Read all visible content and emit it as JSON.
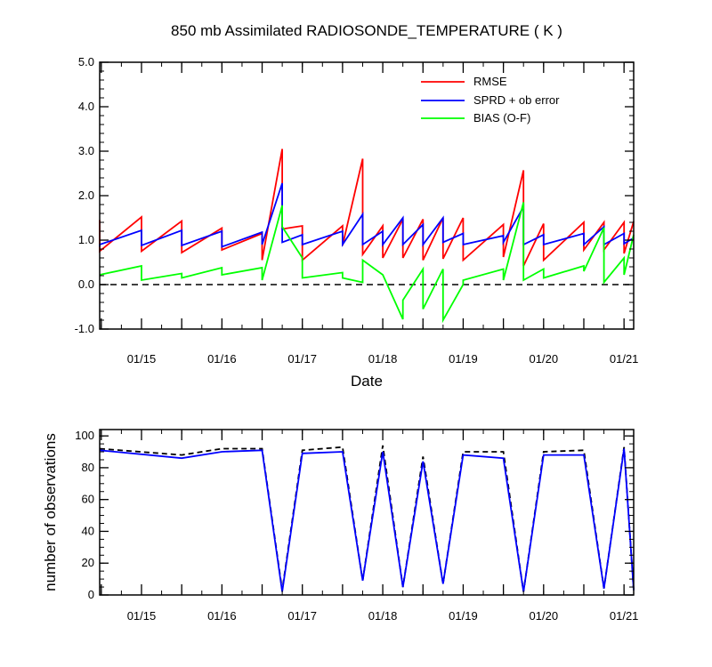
{
  "chart_data": [
    {
      "type": "line",
      "title": "850 mb Assimilated RADIOSONDE_TEMPERATURE ( K )",
      "xlabel": "Date",
      "ylabel": "",
      "xlim": [
        14.48,
        21.12
      ],
      "ylim": [
        -1.0,
        5.0
      ],
      "ytick_labels": [
        "-1.0",
        "0.0",
        "1.0",
        "2.0",
        "3.0",
        "4.0",
        "5.0"
      ],
      "xtick_labels": [
        "01/15",
        "01/16",
        "01/17",
        "01/18",
        "01/19",
        "01/20",
        "01/21"
      ],
      "legend": {
        "position": "top-right",
        "entries": [
          "RMSE",
          "SPRD + ob error",
          "BIAS (O-F)"
        ]
      },
      "zero_line": "dashed",
      "series": [
        {
          "name": "RMSE",
          "color": "#ff0000",
          "x": [
            14.48,
            14.48,
            15.0,
            15.0,
            15.5,
            15.5,
            16.0,
            16.0,
            16.5,
            16.5,
            16.75,
            16.75,
            17.0,
            17.0,
            17.5,
            17.5,
            17.75,
            17.75,
            18.0,
            18.0,
            18.25,
            18.25,
            18.5,
            18.5,
            18.75,
            18.75,
            19.0,
            19.0,
            19.5,
            19.5,
            19.75,
            19.75,
            20.0,
            20.0,
            20.5,
            20.5,
            20.75,
            20.75,
            21.0,
            21.0,
            21.12
          ],
          "y": [
            1.45,
            0.75,
            1.52,
            0.75,
            1.43,
            0.72,
            1.27,
            0.78,
            1.15,
            0.55,
            3.05,
            1.25,
            1.32,
            0.55,
            1.32,
            0.88,
            2.83,
            0.68,
            1.32,
            0.6,
            1.47,
            0.6,
            1.47,
            0.55,
            1.5,
            0.58,
            1.5,
            0.55,
            1.35,
            0.62,
            2.57,
            0.42,
            1.37,
            0.55,
            1.4,
            0.78,
            1.4,
            0.78,
            1.4,
            0.7,
            1.42
          ]
        },
        {
          "name": "SPRD + ob error",
          "color": "#0000ff",
          "x": [
            14.48,
            14.48,
            15.0,
            15.0,
            15.5,
            15.5,
            16.0,
            16.0,
            16.5,
            16.5,
            16.75,
            16.75,
            17.0,
            17.0,
            17.5,
            17.5,
            17.75,
            17.75,
            18.0,
            18.0,
            18.25,
            18.25,
            18.5,
            18.5,
            18.75,
            18.75,
            19.0,
            19.0,
            19.5,
            19.5,
            19.75,
            19.75,
            20.0,
            20.0,
            20.5,
            20.5,
            20.75,
            20.75,
            21.0,
            21.0,
            21.12
          ],
          "y": [
            0.85,
            0.9,
            1.22,
            0.88,
            1.22,
            0.88,
            1.2,
            0.85,
            1.18,
            0.9,
            2.28,
            0.95,
            1.12,
            0.9,
            1.2,
            0.9,
            1.58,
            0.9,
            1.2,
            0.9,
            1.5,
            0.9,
            1.35,
            0.9,
            1.5,
            0.95,
            1.15,
            0.9,
            1.1,
            0.95,
            1.75,
            0.9,
            1.12,
            0.9,
            1.15,
            0.9,
            1.3,
            0.9,
            1.15,
            0.92,
            1.05
          ]
        },
        {
          "name": "BIAS (O-F)",
          "color": "#00ff00",
          "x": [
            14.48,
            15.0,
            15.0,
            15.5,
            15.5,
            16.0,
            16.0,
            16.5,
            16.5,
            16.75,
            16.75,
            17.0,
            17.0,
            17.5,
            17.5,
            17.75,
            17.75,
            18.0,
            18.25,
            18.25,
            18.5,
            18.5,
            18.75,
            18.75,
            19.0,
            19.0,
            19.5,
            19.5,
            19.75,
            19.75,
            20.0,
            20.0,
            20.5,
            20.5,
            20.75,
            20.75,
            21.0,
            21.0,
            21.12
          ],
          "y": [
            0.22,
            0.42,
            0.1,
            0.25,
            0.15,
            0.38,
            0.22,
            0.38,
            0.1,
            1.78,
            1.3,
            0.6,
            0.15,
            0.27,
            0.15,
            0.05,
            0.55,
            0.22,
            -0.78,
            -0.35,
            0.35,
            -0.55,
            0.35,
            -0.8,
            0.0,
            0.1,
            0.35,
            0.1,
            1.85,
            0.1,
            0.35,
            0.15,
            0.42,
            0.3,
            1.28,
            0.05,
            0.6,
            0.22,
            1.12
          ]
        }
      ]
    },
    {
      "type": "line",
      "title": "",
      "xlabel": "",
      "ylabel": "number of observations",
      "xlim": [
        14.48,
        21.12
      ],
      "ylim": [
        0,
        104
      ],
      "ytick_labels": [
        "0",
        "20",
        "40",
        "60",
        "80",
        "100"
      ],
      "xtick_labels": [
        "01/15",
        "01/16",
        "01/17",
        "01/18",
        "01/19",
        "01/20",
        "01/21"
      ],
      "series": [
        {
          "name": "number of observations (dashed)",
          "color": "#000000",
          "style": "dashed",
          "x": [
            14.48,
            15.5,
            16.0,
            16.5,
            16.75,
            17.0,
            17.5,
            17.75,
            18.0,
            18.25,
            18.5,
            18.75,
            19.0,
            19.5,
            19.75,
            20.0,
            20.5,
            20.75,
            21.0,
            21.12
          ],
          "y": [
            92,
            88,
            92,
            92,
            3,
            91,
            93,
            9,
            94,
            5,
            87,
            7,
            90,
            90,
            2,
            90,
            91,
            4,
            93,
            3
          ]
        },
        {
          "name": "number of observations",
          "color": "#0000ff",
          "style": "solid",
          "x": [
            14.48,
            15.5,
            16.0,
            16.5,
            16.75,
            17.0,
            17.5,
            17.75,
            18.0,
            18.25,
            18.5,
            18.75,
            19.0,
            19.5,
            19.75,
            20.0,
            20.5,
            20.75,
            21.0,
            21.12
          ],
          "y": [
            91,
            86,
            90,
            91,
            2,
            89,
            90,
            9,
            90,
            5,
            84,
            7,
            88,
            86,
            2,
            88,
            88,
            4,
            92,
            3
          ]
        }
      ]
    }
  ]
}
